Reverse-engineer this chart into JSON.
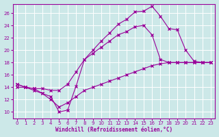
{
  "xlabel": "Windchill (Refroidissement éolien,°C)",
  "bg_color": "#cce8e8",
  "line_color": "#990099",
  "grid_color": "#aacccc",
  "xlim": [
    -0.5,
    23.5
  ],
  "ylim": [
    9,
    27.5
  ],
  "yticks": [
    10,
    12,
    14,
    16,
    18,
    20,
    22,
    24,
    26
  ],
  "xticks": [
    0,
    1,
    2,
    3,
    4,
    5,
    6,
    7,
    8,
    9,
    10,
    11,
    12,
    13,
    14,
    15,
    16,
    17,
    18,
    19,
    20,
    21,
    22,
    23
  ],
  "line1_x": [
    0,
    1,
    2,
    3,
    4,
    5,
    6,
    7,
    8,
    9,
    10,
    11,
    12,
    13,
    14,
    15,
    16,
    17,
    18,
    19,
    20,
    21,
    22,
    23
  ],
  "line1_y": [
    14.5,
    14.0,
    13.8,
    13.0,
    12.5,
    10.0,
    10.3,
    14.2,
    18.5,
    20.0,
    21.5,
    22.8,
    24.2,
    25.0,
    26.2,
    26.3,
    27.1,
    25.5,
    23.5,
    23.3,
    20.0,
    18.2,
    18.0,
    18.0
  ],
  "line2_x": [
    0,
    1,
    2,
    3,
    4,
    5,
    6,
    7,
    8,
    9,
    10,
    11,
    12,
    13,
    14,
    15,
    16,
    17,
    18,
    19,
    20,
    21,
    22,
    23
  ],
  "line2_y": [
    14.5,
    14.0,
    13.8,
    13.8,
    13.5,
    13.5,
    14.5,
    16.5,
    18.5,
    19.5,
    20.5,
    21.5,
    22.5,
    23.0,
    23.8,
    24.0,
    22.5,
    18.5,
    18.0,
    18.0,
    18.0,
    18.0,
    18.0,
    18.0
  ],
  "line3_x": [
    0,
    1,
    2,
    3,
    4,
    5,
    6,
    7,
    8,
    9,
    10,
    11,
    12,
    13,
    14,
    15,
    16,
    17,
    18,
    19,
    20,
    21,
    22,
    23
  ],
  "line3_y": [
    14.0,
    14.0,
    13.5,
    13.0,
    12.0,
    10.8,
    11.5,
    12.5,
    13.5,
    14.0,
    14.5,
    15.0,
    15.5,
    16.0,
    16.5,
    17.0,
    17.5,
    17.8,
    18.0,
    18.0,
    18.0,
    18.0,
    18.0,
    18.0
  ]
}
